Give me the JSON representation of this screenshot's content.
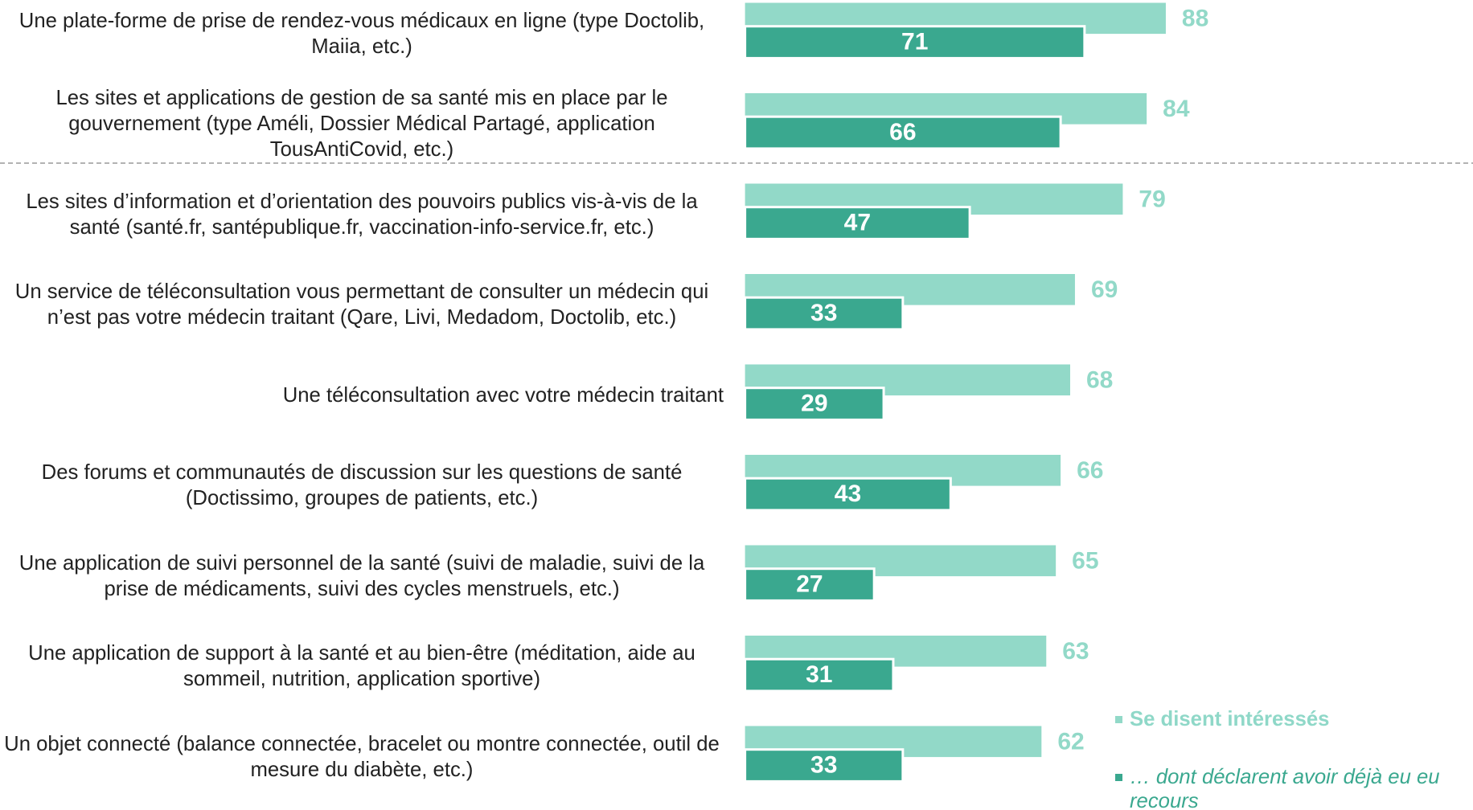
{
  "chart_data": {
    "type": "bar",
    "orientation": "horizontal",
    "categories": [
      "Une plate-forme de prise de rendez-vous médicaux en ligne (type Doctolib, Maiia, etc.)",
      "Les sites et applications de gestion de sa santé mis en place par le gouvernement (type Améli, Dossier Médical Partagé, application TousAntiCovid, etc.)",
      "Les sites d’information et d’orientation des pouvoirs publics vis-à-vis de la santé (santé.fr, santépublique.fr, vaccination-info-service.fr, etc.)",
      "Un service de téléconsultation vous permettant de consulter un médecin qui n’est pas votre médecin traitant (Qare, Livi, Medadom, Doctolib, etc.)",
      "Une téléconsultation avec votre médecin traitant",
      "Des forums et communautés de discussion sur les questions de santé (Doctissimo, groupes de patients, etc.)",
      "Une application de suivi personnel de la santé (suivi de maladie, suivi de la prise de médicaments, suivi des cycles menstruels, etc.)",
      "Une application de support à la santé et au bien-être (méditation, aide au sommeil, nutrition, application sportive)",
      "Un objet connecté (balance connectée, bracelet ou montre connectée, outil de mesure du diabète, etc.)"
    ],
    "series": [
      {
        "name": "Se disent intéressés",
        "color": "#92d9c8",
        "values": [
          88,
          84,
          79,
          69,
          68,
          66,
          65,
          63,
          62
        ]
      },
      {
        "name": "… dont déclarent avoir déjà eu eu recours",
        "color": "#3aa88f",
        "values": [
          71,
          66,
          47,
          33,
          29,
          43,
          27,
          31,
          33
        ]
      }
    ],
    "xlim": [
      0,
      100
    ]
  }
}
